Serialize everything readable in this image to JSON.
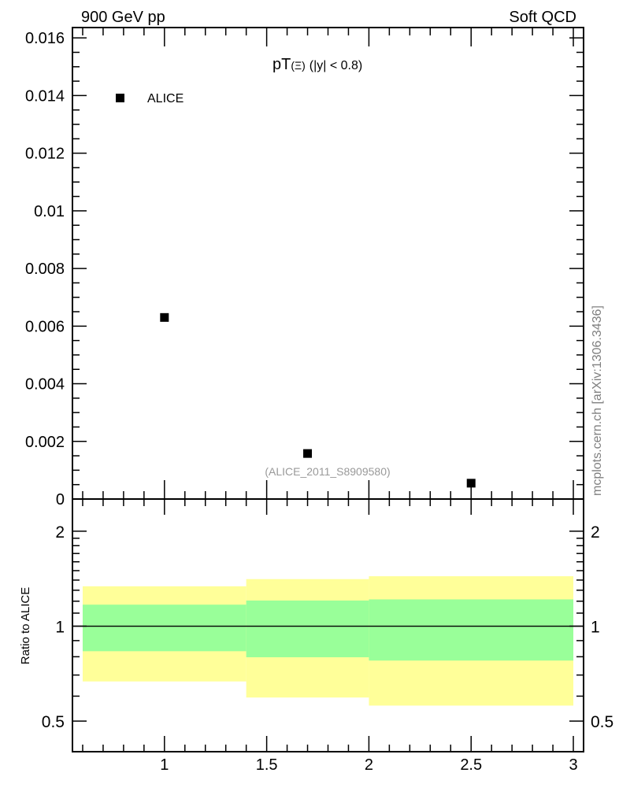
{
  "header": {
    "left": "900 GeV pp",
    "right": "Soft QCD"
  },
  "side_label": "mcplots.cern.ch [arXiv:1306.3436]",
  "colors": {
    "band_outer": "#ffff99",
    "band_inner": "#99ff99",
    "marker": "#000000"
  },
  "chart_data": [
    {
      "type": "scatter",
      "title_main": "pT",
      "title_particle": "(Ξ)",
      "title_cut": "(|y| < 0.8)",
      "analysis_id": "(ALICE_2011_S8909580)",
      "legend": [
        {
          "label": "ALICE",
          "marker": "square"
        }
      ],
      "legend_placement": "top-left",
      "xlim": [
        0.55,
        3.05
      ],
      "ylim": [
        0,
        0.01636
      ],
      "ytick_labels": [
        "0",
        "0.002",
        "0.004",
        "0.006",
        "0.008",
        "0.01",
        "0.012",
        "0.014",
        "0.016"
      ],
      "yticks": [
        0,
        0.002,
        0.004,
        0.006,
        0.008,
        0.01,
        0.012,
        0.014,
        0.016
      ],
      "series": [
        {
          "name": "ALICE",
          "x": [
            1.0,
            1.7,
            2.5
          ],
          "y": [
            0.0063,
            0.00158,
            0.00055
          ]
        }
      ]
    },
    {
      "type": "area",
      "ylabel": "Ratio to ALICE",
      "yscale": "log",
      "ylim": [
        0.4,
        2.53
      ],
      "xlim": [
        0.55,
        3.05
      ],
      "yticks": [
        0.5,
        1,
        2
      ],
      "ytick_labels": [
        "0.5",
        "1",
        "2"
      ],
      "xticks": [
        1,
        1.5,
        2,
        2.5,
        3
      ],
      "xtick_labels": [
        "1",
        "1.5",
        "2",
        "2.5",
        "3"
      ],
      "reference_line": 1,
      "bins": [
        {
          "xlo": 0.6,
          "xhi": 1.4,
          "outer": [
            0.668,
            1.338
          ],
          "inner": [
            0.833,
            1.17
          ]
        },
        {
          "xlo": 1.4,
          "xhi": 2.0,
          "outer": [
            0.594,
            1.41
          ],
          "inner": [
            0.797,
            1.206
          ]
        },
        {
          "xlo": 2.0,
          "xhi": 3.0,
          "outer": [
            0.56,
            1.44
          ],
          "inner": [
            0.778,
            1.216
          ]
        }
      ]
    }
  ]
}
